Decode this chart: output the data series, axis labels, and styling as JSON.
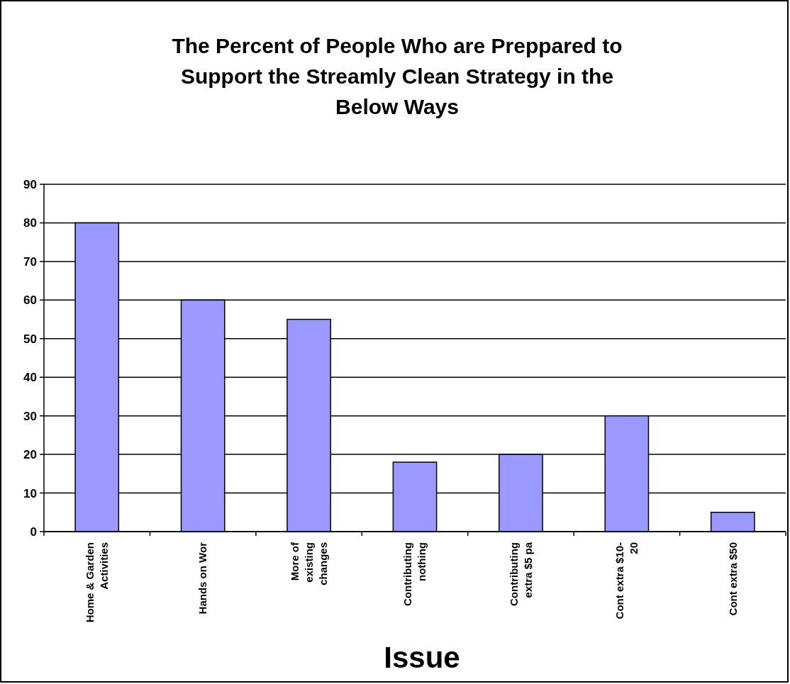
{
  "chart_data": {
    "type": "bar",
    "title": "The Percent of People Who are Preppared to Support the Streamly Clean Strategy in the Below Ways",
    "xlabel": "Issue",
    "categories": [
      "Home & Garden\nActivities",
      "Hands on Wor",
      "More of\nexisting\nchanges",
      "Contributing\nnothing",
      "Contributing\nextra $5 pa",
      "Cont extra $10-\n20",
      "Cont extra $50"
    ],
    "values": [
      80,
      60,
      55,
      18,
      20,
      30,
      5
    ],
    "color": "#9999ff",
    "ylim": [
      0,
      90
    ],
    "yticks": [
      0,
      10,
      20,
      30,
      40,
      50,
      60,
      70,
      80,
      90
    ],
    "grid": "y"
  }
}
